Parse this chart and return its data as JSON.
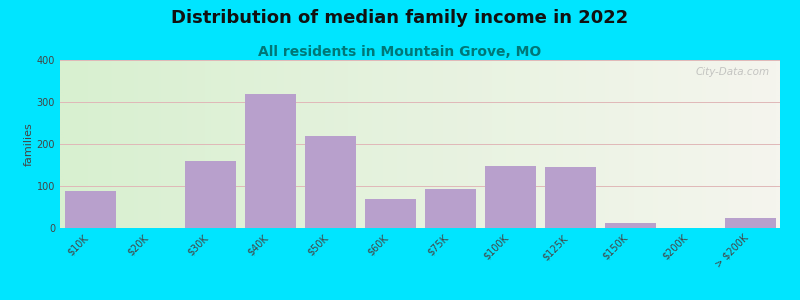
{
  "title": "Distribution of median family income in 2022",
  "subtitle": "All residents in Mountain Grove, MO",
  "ylabel": "families",
  "categories": [
    "$10K",
    "$20K",
    "$30K",
    "$40K",
    "$50K",
    "$60K",
    "$75K",
    "$100K",
    "$125K",
    "$150K",
    "$200K",
    "> $200K"
  ],
  "values": [
    88,
    0,
    160,
    318,
    220,
    68,
    92,
    148,
    145,
    12,
    0,
    25
  ],
  "bar_color": "#b8a0cc",
  "bg_outer": "#00e5ff",
  "ylim": [
    0,
    400
  ],
  "yticks": [
    0,
    100,
    200,
    300,
    400
  ],
  "watermark": "City-Data.com",
  "title_fontsize": 13,
  "subtitle_fontsize": 10,
  "ylabel_fontsize": 8,
  "tick_fontsize": 7
}
